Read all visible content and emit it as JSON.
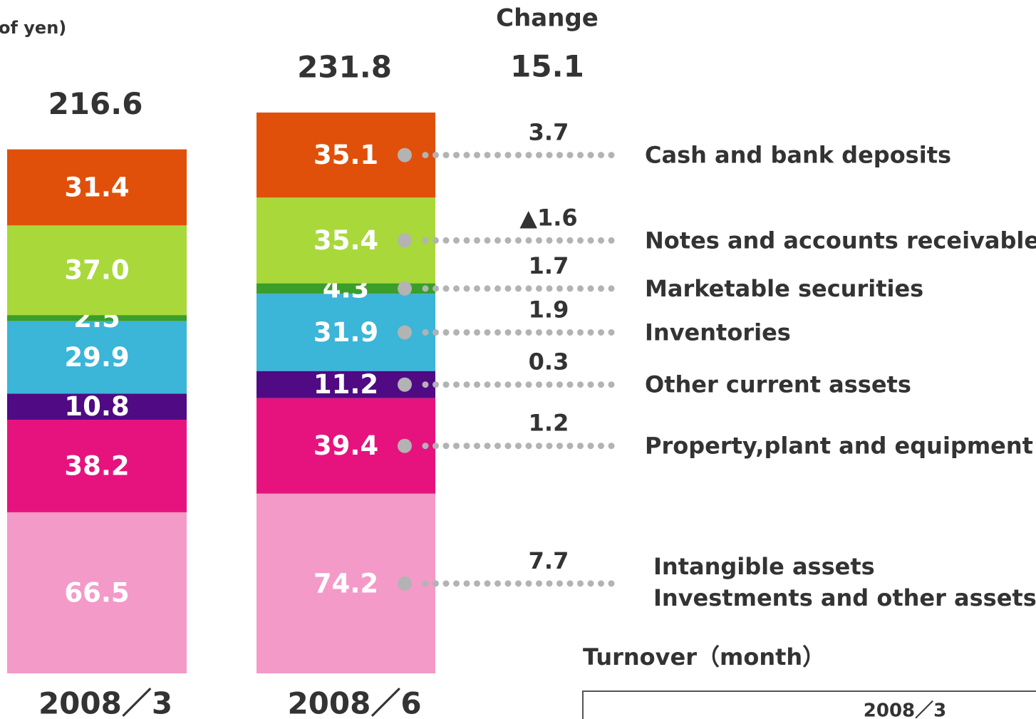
{
  "chart_data": {
    "type": "stacked_bar",
    "unit_label": "of yen)",
    "change_title": "Change",
    "change_total": 15.1,
    "categories": [
      "2008／3",
      "2008／6"
    ],
    "totals": [
      216.6,
      231.8
    ],
    "ylim": [
      0,
      250
    ],
    "series": [
      {
        "name": "Intangible assets",
        "name_2": "Investments and other assets",
        "color": "#f39ac9",
        "values": [
          66.5,
          74.2
        ],
        "change": "7.7"
      },
      {
        "name": "Property,plant and equipment",
        "color": "#e6137f",
        "values": [
          38.2,
          39.4
        ],
        "change": "1.2"
      },
      {
        "name": "Other current assets",
        "color": "#4f0a84",
        "values": [
          10.8,
          11.2
        ],
        "change": "0.3"
      },
      {
        "name": "Inventories",
        "color": "#3bb5d8",
        "values": [
          29.9,
          31.9
        ],
        "change": "1.9"
      },
      {
        "name": "Marketable securities",
        "color": "#3a9e2a",
        "values": [
          2.5,
          4.3
        ],
        "change": "1.7"
      },
      {
        "name": "Notes and accounts receivable",
        "color": "#a9d83b",
        "values": [
          37.0,
          35.4
        ],
        "value_labels": [
          "37.0",
          "35.4"
        ],
        "change": "▲1.6"
      },
      {
        "name": "Cash and bank deposits",
        "color": "#e0500a",
        "values": [
          31.4,
          35.1
        ],
        "change": "3.7"
      }
    ],
    "turnover_title": "Turnover（month）",
    "turnover_header": "2008／3"
  }
}
